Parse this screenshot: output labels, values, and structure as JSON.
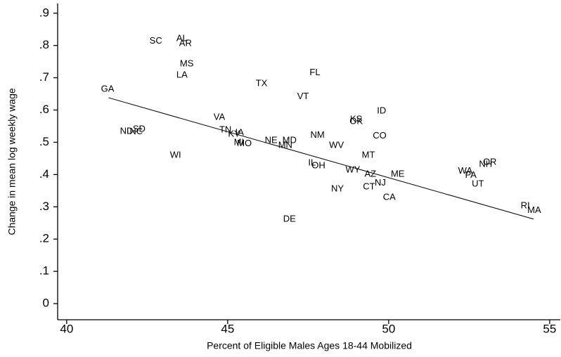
{
  "chart_data": {
    "type": "scatter",
    "x_label": "Percent of Eligible Males Ages 18-44 Mobilized",
    "y_label": "Change in mean log weekly wage",
    "labels": [
      "SC",
      "AL",
      "AR",
      "MS",
      "LA",
      "TX",
      "FL",
      "VT",
      "GA",
      "VA",
      "KS",
      "OK",
      "ID",
      "TN",
      "KY",
      "IA",
      "ND",
      "NC",
      "SD",
      "NM",
      "CO",
      "NE",
      "MD",
      "MN",
      "MI",
      "MO",
      "WV",
      "WI",
      "MT",
      "IL",
      "OH",
      "WY",
      "AZ",
      "ME",
      "NJ",
      "CT",
      "NY",
      "CA",
      "WA",
      "PA",
      "NH",
      "OR",
      "UT",
      "RI",
      "MA",
      "DE"
    ],
    "x": [
      42.77,
      43.58,
      43.69,
      43.73,
      43.58,
      46.05,
      47.71,
      47.34,
      41.27,
      44.74,
      48.99,
      48.99,
      49.78,
      44.93,
      45.2,
      45.37,
      41.86,
      42.16,
      42.25,
      47.79,
      49.72,
      46.35,
      46.92,
      46.79,
      45.35,
      45.52,
      48.38,
      43.38,
      49.37,
      47.62,
      47.82,
      48.89,
      49.43,
      50.28,
      49.74,
      49.39,
      48.41,
      50.02,
      52.38,
      52.55,
      53.01,
      53.14,
      52.77,
      54.24,
      54.52,
      46.92
    ],
    "values": [
      0.813,
      0.821,
      0.806,
      0.743,
      0.708,
      0.682,
      0.715,
      0.641,
      0.664,
      0.577,
      0.571,
      0.564,
      0.597,
      0.538,
      0.525,
      0.529,
      0.534,
      0.532,
      0.54,
      0.521,
      0.519,
      0.505,
      0.505,
      0.49,
      0.499,
      0.495,
      0.49,
      0.46,
      0.46,
      0.436,
      0.427,
      0.414,
      0.401,
      0.401,
      0.373,
      0.362,
      0.355,
      0.329,
      0.41,
      0.397,
      0.431,
      0.438,
      0.37,
      0.303,
      0.288,
      0.261
    ],
    "color": "#000000",
    "fit_line": {
      "x": [
        41.3,
        54.5
      ],
      "values": [
        0.638,
        0.262
      ]
    },
    "xlim": [
      39.72,
      55.33
    ],
    "ylim": [
      -0.05,
      0.93
    ],
    "xticks": [
      40,
      45,
      50,
      55
    ],
    "yticks": [
      0,
      {
        "value": 0.1,
        "label": ".1"
      },
      {
        "value": 0.2,
        "label": ".2"
      },
      {
        "value": 0.3,
        "label": ".3"
      },
      {
        "value": 0.4,
        "label": ".4"
      },
      {
        "value": 0.5,
        "label": ".5"
      },
      {
        "value": 0.6,
        "label": ".6"
      },
      {
        "value": 0.7,
        "label": ".7"
      },
      {
        "value": 0.8,
        "label": ".8"
      },
      {
        "value": 0.9,
        "label": ".9"
      }
    ]
  }
}
